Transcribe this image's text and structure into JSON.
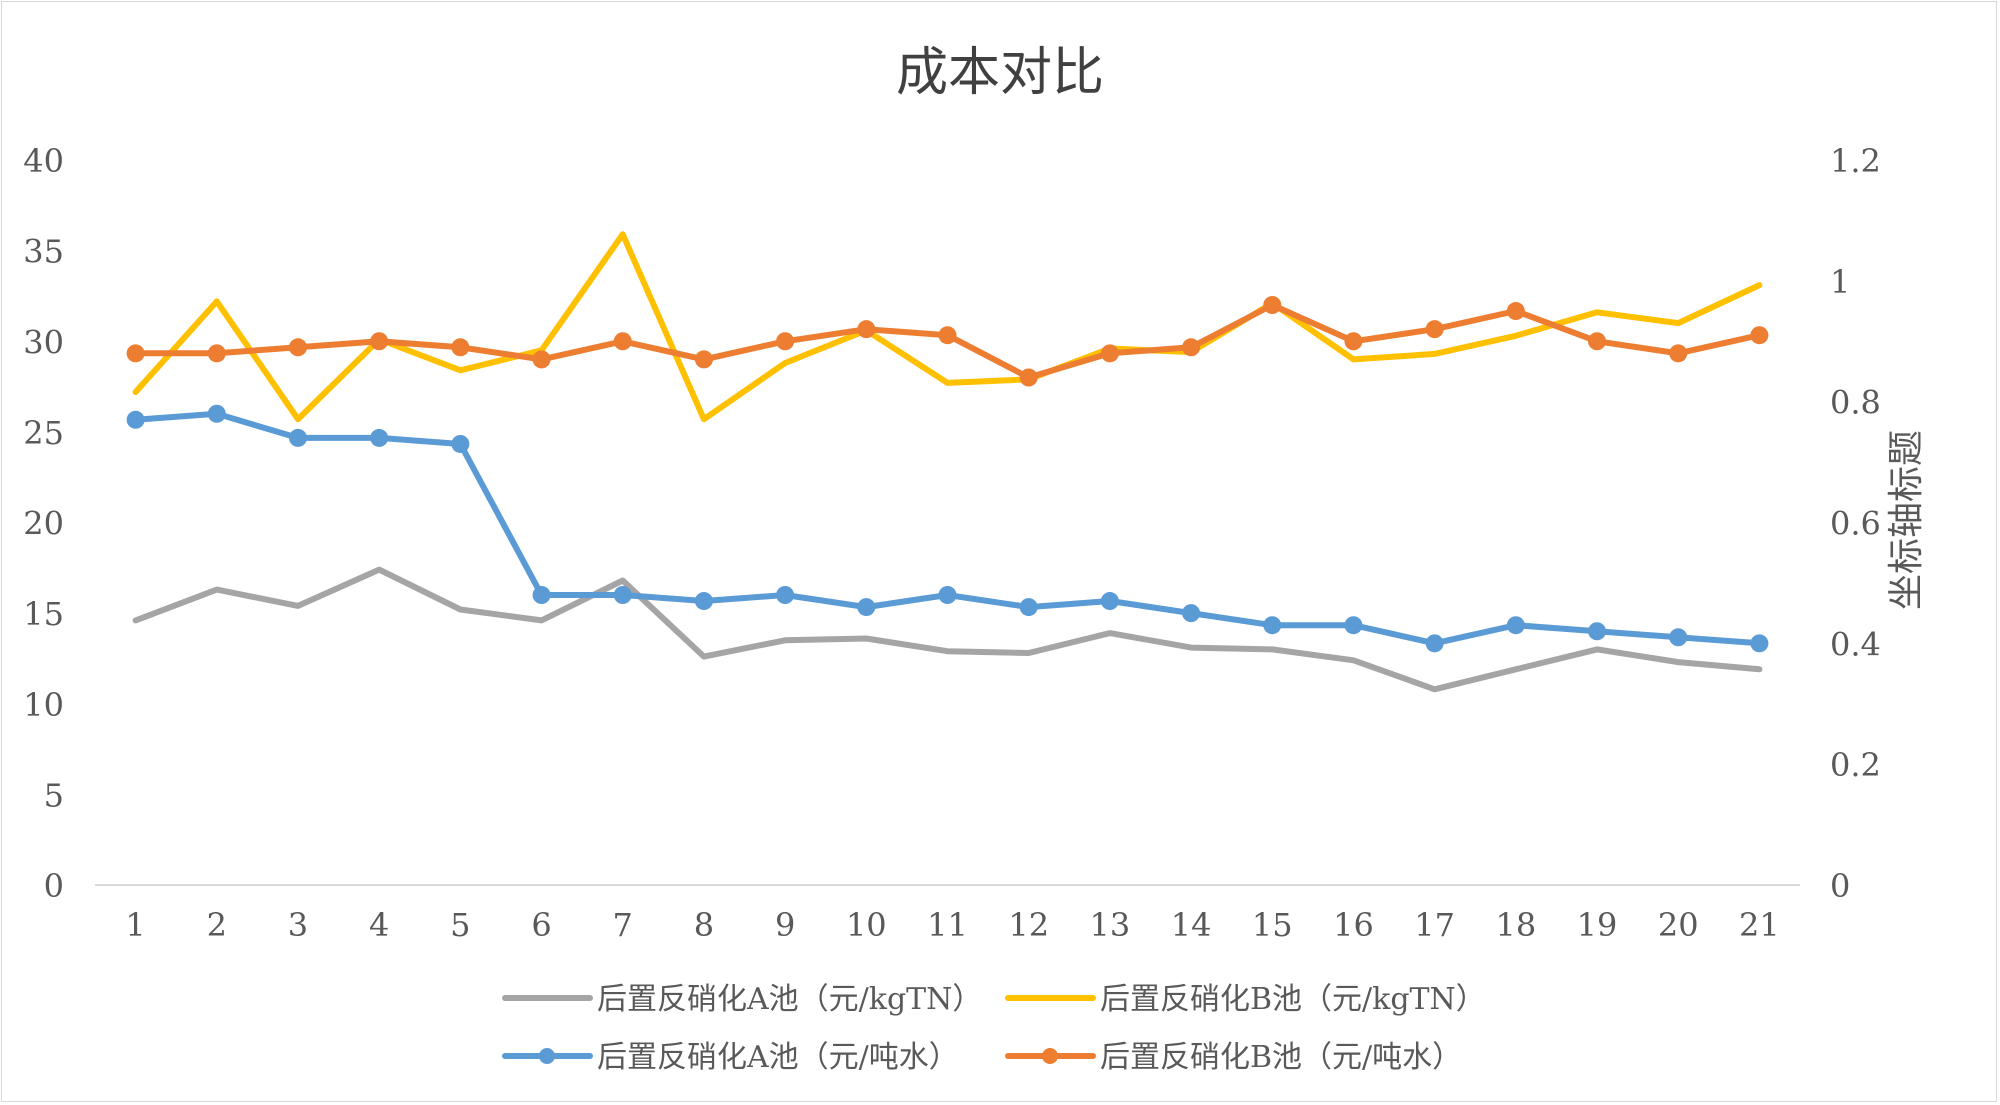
{
  "chart_data": {
    "type": "line",
    "title": "成本对比",
    "categories": [
      "1",
      "2",
      "3",
      "4",
      "5",
      "6",
      "7",
      "8",
      "9",
      "10",
      "11",
      "12",
      "13",
      "14",
      "15",
      "16",
      "17",
      "18",
      "19",
      "20",
      "21"
    ],
    "y_left": {
      "ticks": [
        "0",
        "5",
        "10",
        "15",
        "20",
        "25",
        "30",
        "35",
        "40"
      ],
      "ylim": [
        0,
        40
      ]
    },
    "y_right": {
      "label": "坐标轴标题",
      "ticks": [
        "0",
        "0.2",
        "0.4",
        "0.6",
        "0.8",
        "1",
        "1.2"
      ],
      "ylim": [
        0,
        1.2
      ]
    },
    "legend_position": "bottom",
    "series": [
      {
        "name": "后置反硝化A池（元/kgTN）",
        "axis": "left",
        "color": "#a5a5a5",
        "marker": false,
        "values": [
          14.6,
          16.3,
          15.4,
          17.4,
          15.2,
          14.6,
          16.8,
          12.6,
          13.5,
          13.6,
          12.9,
          12.8,
          13.9,
          13.1,
          13.0,
          12.4,
          10.8,
          11.9,
          13.0,
          12.3,
          11.9
        ]
      },
      {
        "name": "后置反硝化B池（元/kgTN）",
        "axis": "left",
        "color": "#ffc000",
        "marker": false,
        "values": [
          27.2,
          32.2,
          25.7,
          30.1,
          28.4,
          29.5,
          35.9,
          25.7,
          28.8,
          30.6,
          27.7,
          27.9,
          29.6,
          29.4,
          32.1,
          29.0,
          29.3,
          30.3,
          31.6,
          31.0,
          33.1
        ]
      },
      {
        "name": "后置反硝化A池（元/吨水）",
        "axis": "right",
        "color": "#5b9bd5",
        "marker": true,
        "values": [
          0.77,
          0.78,
          0.74,
          0.74,
          0.73,
          0.48,
          0.48,
          0.47,
          0.48,
          0.46,
          0.48,
          0.46,
          0.47,
          0.45,
          0.43,
          0.43,
          0.4,
          0.43,
          0.42,
          0.41,
          0.4
        ]
      },
      {
        "name": "后置反硝化B池（元/吨水）",
        "axis": "right",
        "color": "#ed7d31",
        "marker": true,
        "values": [
          0.88,
          0.88,
          0.89,
          0.9,
          0.89,
          0.87,
          0.9,
          0.87,
          0.9,
          0.92,
          0.91,
          0.84,
          0.88,
          0.89,
          0.96,
          0.9,
          0.92,
          0.95,
          0.9,
          0.88,
          0.91
        ]
      }
    ]
  }
}
